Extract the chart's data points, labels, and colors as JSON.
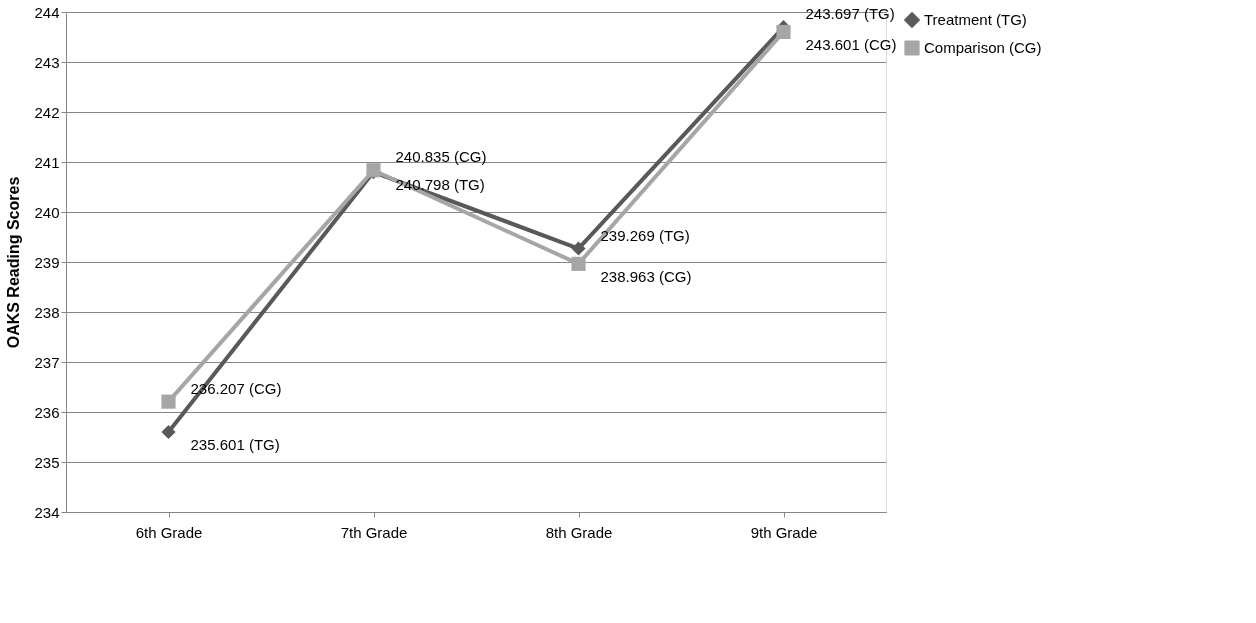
{
  "chart_data": {
    "type": "line",
    "ylabel": "OAKS Reading Scores",
    "categories": [
      "6th Grade",
      "7th Grade",
      "8th Grade",
      "9th Grade"
    ],
    "series": [
      {
        "name": "Treatment (TG)",
        "color": "#595959",
        "marker": "diamond",
        "values": [
          235.601,
          240.798,
          239.269,
          243.697
        ],
        "value_labels": [
          "235.601 (TG)",
          "240.798 (TG)",
          "239.269 (TG)",
          "243.697 (TG)"
        ]
      },
      {
        "name": "Comparison (CG)",
        "color": "#a6a6a6",
        "marker": "square",
        "values": [
          236.207,
          240.835,
          238.963,
          243.601
        ],
        "value_labels": [
          "236.207 (CG)",
          "240.835 (CG)",
          "238.963 (CG)",
          "243.601 (CG)"
        ]
      }
    ],
    "ylim": [
      234,
      244
    ],
    "yticks": [
      234,
      235,
      236,
      237,
      238,
      239,
      240,
      241,
      242,
      243,
      244
    ],
    "grid": "y",
    "legend": "right"
  }
}
